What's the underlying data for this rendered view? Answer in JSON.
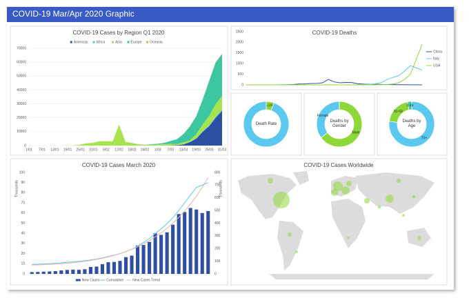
{
  "header": {
    "title": "COVID-19 Mar/Apr 2020 Graphic"
  },
  "chart_data": [
    {
      "type": "stacked-area",
      "title": "COVID-19 Cases by Region Q1 2020",
      "categories": [
        "1/01",
        null,
        "7/01",
        null,
        "13/01",
        null,
        "19/01",
        null,
        "25/01",
        null,
        "31/01",
        null,
        "6/02",
        null,
        "12/02",
        null,
        "18/02",
        null,
        "24/02",
        null,
        "1/03",
        null,
        "7/03",
        null,
        "13/03",
        null,
        "19/03",
        null,
        "25/03",
        null,
        "31/03"
      ],
      "ylim": [
        0,
        70000
      ],
      "yticks": [
        0,
        10000,
        20000,
        30000,
        40000,
        50000,
        60000,
        70000
      ],
      "grid": true,
      "legend": "top",
      "series": [
        {
          "name": "Americas",
          "color": "#2e4fa3",
          "values": [
            0,
            0,
            0,
            0,
            0,
            0,
            0,
            0,
            0,
            0,
            0,
            0,
            0,
            0,
            0,
            0,
            0,
            0,
            0,
            0,
            20,
            50,
            100,
            300,
            800,
            2500,
            5000,
            10000,
            14000,
            20000,
            25000
          ]
        },
        {
          "name": "Africa",
          "color": "#5bc0e8",
          "values": [
            0,
            0,
            0,
            0,
            0,
            0,
            0,
            0,
            0,
            0,
            0,
            0,
            0,
            0,
            0,
            0,
            0,
            0,
            0,
            0,
            0,
            0,
            0,
            0,
            0,
            100,
            200,
            300,
            500,
            700,
            800
          ]
        },
        {
          "name": "Asia",
          "color": "#a6e34f",
          "values": [
            0,
            0,
            0,
            0,
            5,
            20,
            80,
            150,
            700,
            1700,
            2000,
            3200,
            3100,
            3000,
            15000,
            2600,
            1900,
            900,
            600,
            700,
            800,
            900,
            1200,
            800,
            1500,
            1200,
            3000,
            5000,
            7000,
            9000,
            10000
          ]
        },
        {
          "name": "Europe",
          "color": "#3cc7a0",
          "values": [
            0,
            0,
            0,
            0,
            0,
            0,
            0,
            0,
            0,
            0,
            0,
            0,
            0,
            0,
            0,
            0,
            0,
            0,
            50,
            300,
            500,
            1000,
            2000,
            3500,
            6000,
            10000,
            13000,
            18000,
            25000,
            30000,
            30000
          ]
        },
        {
          "name": "Oceania",
          "color": "#f0a050",
          "values": [
            0,
            0,
            0,
            0,
            0,
            0,
            0,
            0,
            0,
            0,
            0,
            0,
            0,
            0,
            0,
            0,
            0,
            0,
            0,
            0,
            0,
            0,
            0,
            0,
            0,
            50,
            100,
            200,
            300,
            300,
            300
          ]
        }
      ]
    },
    {
      "type": "line",
      "title": "COVID-19 Deaths",
      "ylim": [
        0,
        2500
      ],
      "yticks": [
        0,
        500,
        1000,
        1500,
        2000,
        2500
      ],
      "legend": "right",
      "series": [
        {
          "name": "China",
          "color": "#2e4fa3",
          "values": [
            0,
            0,
            0,
            0,
            0,
            0,
            3,
            8,
            15,
            40,
            45,
            65,
            70,
            97,
            254,
            140,
            98,
            115,
            110,
            52,
            35,
            31,
            27,
            22,
            11,
            13,
            8,
            7,
            5,
            3,
            1
          ]
        },
        {
          "name": "Italy",
          "color": "#5bc8f0",
          "values": [
            0,
            0,
            0,
            0,
            0,
            0,
            0,
            0,
            0,
            0,
            0,
            0,
            0,
            0,
            0,
            0,
            0,
            0,
            2,
            4,
            12,
            28,
            50,
            100,
            250,
            350,
            430,
            650,
            900,
            800,
            700
          ]
        },
        {
          "name": "USA",
          "color": "#8ed83a",
          "values": [
            0,
            0,
            0,
            0,
            0,
            0,
            0,
            0,
            0,
            0,
            0,
            0,
            0,
            0,
            0,
            0,
            0,
            0,
            0,
            0,
            0,
            2,
            5,
            8,
            15,
            40,
            100,
            250,
            500,
            1200,
            1900
          ]
        }
      ]
    },
    {
      "type": "donut",
      "title": "Death Rate",
      "categories": [
        null,
        null
      ],
      "values": [
        5.6,
        94.4
      ],
      "value_labels": [
        "5.6%",
        null
      ],
      "colors": [
        "#8ed83a",
        "#5bc8f0"
      ]
    },
    {
      "type": "donut",
      "title": "Deaths by Gender",
      "categories": [
        "Male",
        "Female"
      ],
      "values": [
        65,
        35
      ],
      "colors": [
        "#8ed83a",
        "#5bc8f0"
      ]
    },
    {
      "type": "donut",
      "title": "Deaths by Age",
      "categories": [
        "70+",
        "50-69",
        "0-49"
      ],
      "values": [
        77,
        20,
        3
      ],
      "colors": [
        "#5bc8f0",
        "#8ed83a",
        "#3cc7a0"
      ]
    },
    {
      "type": "bar-line",
      "title": "COVID-19 Cases March 2020",
      "ylabel": "Thousands",
      "y2label": "Thousands",
      "ylim": [
        0,
        100
      ],
      "yticks": [
        0,
        10,
        20,
        30,
        40,
        50,
        60,
        70,
        80,
        90,
        100
      ],
      "y2lim": [
        0,
        800
      ],
      "y2ticks": [
        0,
        100,
        200,
        300,
        400,
        500,
        600,
        700,
        800
      ],
      "legend": "bottom",
      "series": [
        {
          "name": "New Cases",
          "color": "#2e4fa3",
          "kind": "bar",
          "values": [
            1.8,
            1.9,
            2.2,
            2.4,
            2.7,
            3.4,
            3.9,
            4.2,
            4.0,
            4.6,
            6.8,
            7.2,
            9.6,
            11.5,
            11.8,
            12.8,
            16.5,
            18,
            28,
            28.5,
            31.5,
            40,
            38.5,
            41,
            48.5,
            59,
            61,
            65,
            63.5,
            60,
            62
          ]
        },
        {
          "name": "Cumulative",
          "color": "#5bc8f0",
          "kind": "line",
          "axis": "y2",
          "values": [
            75,
            77,
            79,
            81,
            84,
            87,
            91,
            95,
            99,
            104,
            110,
            117,
            126,
            137,
            148,
            160,
            176,
            193,
            220,
            248,
            279,
            318,
            356,
            396,
            443,
            500,
            560,
            622,
            682,
            700,
            720
          ]
        },
        {
          "name": "New Cases Trend",
          "color": "#f0b0a0",
          "kind": "line",
          "axis": "y2",
          "values": [
            70,
            71,
            73,
            75,
            77,
            80,
            84,
            88,
            93,
            99,
            106,
            114,
            123,
            134,
            146,
            160,
            176,
            194,
            214,
            237,
            263,
            292,
            324,
            360,
            400,
            445,
            495,
            551,
            613,
            682,
            760
          ]
        }
      ]
    }
  ],
  "map": {
    "title": "COVID-19 Cases Worldwide"
  }
}
